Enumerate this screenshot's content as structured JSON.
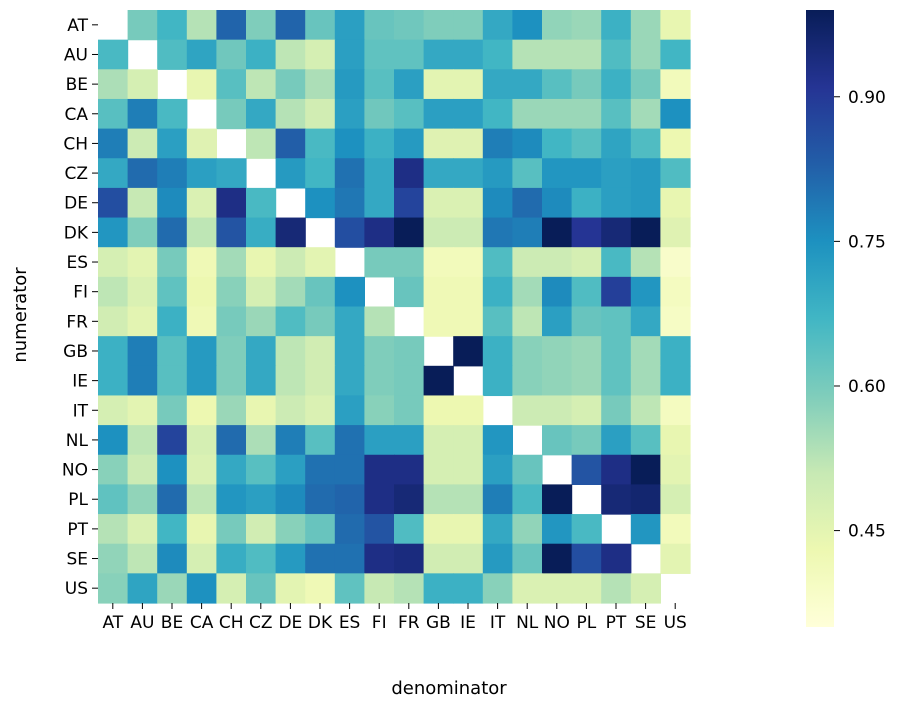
{
  "chart_data": {
    "type": "heatmap",
    "xlabel": "denominator",
    "ylabel": "numerator",
    "x_categories": [
      "AT",
      "AU",
      "BE",
      "CA",
      "CH",
      "CZ",
      "DE",
      "DK",
      "ES",
      "FI",
      "FR",
      "GB",
      "IE",
      "IT",
      "NL",
      "NO",
      "PL",
      "PT",
      "SE",
      "US"
    ],
    "y_categories": [
      "AT",
      "AU",
      "BE",
      "CA",
      "CH",
      "CZ",
      "DE",
      "DK",
      "ES",
      "FI",
      "FR",
      "GB",
      "IE",
      "IT",
      "NL",
      "NO",
      "PL",
      "PT",
      "SE",
      "US"
    ],
    "colorbar": {
      "colormap": "YlGnBu",
      "vmin": 0.35,
      "vmax": 0.99,
      "ticks": [
        0.45,
        0.6,
        0.75,
        0.9
      ],
      "tick_labels": [
        "0.45",
        "0.60",
        "0.75",
        "0.90"
      ]
    },
    "values": [
      [
        null,
        0.6,
        0.67,
        0.53,
        0.82,
        0.59,
        0.82,
        0.62,
        0.72,
        0.62,
        0.61,
        0.59,
        0.59,
        0.7,
        0.75,
        0.57,
        0.56,
        0.68,
        0.56,
        0.44
      ],
      [
        0.66,
        null,
        0.65,
        0.71,
        0.61,
        0.68,
        0.52,
        0.48,
        0.72,
        0.63,
        0.63,
        0.7,
        0.7,
        0.67,
        0.53,
        0.53,
        0.53,
        0.65,
        0.56,
        0.67
      ],
      [
        0.54,
        0.48,
        null,
        0.44,
        0.64,
        0.52,
        0.6,
        0.54,
        0.73,
        0.64,
        0.72,
        0.45,
        0.45,
        0.7,
        0.7,
        0.64,
        0.6,
        0.68,
        0.6,
        0.41
      ],
      [
        0.64,
        0.78,
        0.66,
        null,
        0.6,
        0.7,
        0.53,
        0.49,
        0.72,
        0.61,
        0.64,
        0.72,
        0.72,
        0.67,
        0.56,
        0.56,
        0.56,
        0.64,
        0.55,
        0.75
      ],
      [
        0.78,
        0.5,
        0.72,
        0.46,
        null,
        0.52,
        0.83,
        0.66,
        0.75,
        0.68,
        0.73,
        0.46,
        0.46,
        0.78,
        0.76,
        0.67,
        0.64,
        0.71,
        0.65,
        0.43
      ],
      [
        0.7,
        0.81,
        0.78,
        0.72,
        0.7,
        null,
        0.73,
        0.67,
        0.8,
        0.7,
        0.93,
        0.7,
        0.7,
        0.73,
        0.64,
        0.74,
        0.74,
        0.72,
        0.73,
        0.65
      ],
      [
        0.86,
        0.51,
        0.76,
        0.47,
        0.93,
        0.66,
        null,
        0.75,
        0.79,
        0.7,
        0.88,
        0.47,
        0.47,
        0.76,
        0.81,
        0.76,
        0.68,
        0.72,
        0.73,
        0.44
      ],
      [
        0.74,
        0.59,
        0.81,
        0.52,
        0.85,
        0.69,
        0.95,
        null,
        0.86,
        0.93,
        0.99,
        0.5,
        0.5,
        0.79,
        0.78,
        0.99,
        0.91,
        0.95,
        0.99,
        0.46
      ],
      [
        0.48,
        0.45,
        0.6,
        0.42,
        0.55,
        0.44,
        0.5,
        0.45,
        null,
        0.6,
        0.6,
        0.41,
        0.41,
        0.65,
        0.5,
        0.5,
        0.48,
        0.66,
        0.53,
        0.38
      ],
      [
        0.52,
        0.47,
        0.63,
        0.43,
        0.58,
        0.48,
        0.55,
        0.62,
        0.75,
        null,
        0.62,
        0.42,
        0.42,
        0.68,
        0.55,
        0.76,
        0.65,
        0.89,
        0.74,
        0.4
      ],
      [
        0.49,
        0.45,
        0.68,
        0.42,
        0.6,
        0.56,
        0.65,
        0.6,
        0.7,
        0.53,
        null,
        0.42,
        0.42,
        0.64,
        0.52,
        0.72,
        0.62,
        0.63,
        0.7,
        0.39
      ],
      [
        0.68,
        0.78,
        0.64,
        0.73,
        0.59,
        0.7,
        0.52,
        0.49,
        0.7,
        0.59,
        0.6,
        null,
        0.99,
        0.68,
        0.58,
        0.57,
        0.56,
        0.63,
        0.55,
        0.68
      ],
      [
        0.68,
        0.78,
        0.64,
        0.73,
        0.59,
        0.7,
        0.52,
        0.49,
        0.7,
        0.59,
        0.6,
        0.99,
        null,
        0.68,
        0.58,
        0.57,
        0.56,
        0.63,
        0.55,
        0.68
      ],
      [
        0.48,
        0.45,
        0.6,
        0.43,
        0.56,
        0.44,
        0.5,
        0.47,
        0.72,
        0.58,
        0.6,
        0.43,
        0.43,
        null,
        0.5,
        0.5,
        0.48,
        0.6,
        0.52,
        0.4
      ],
      [
        0.75,
        0.52,
        0.88,
        0.48,
        0.81,
        0.54,
        0.78,
        0.64,
        0.8,
        0.72,
        0.72,
        0.48,
        0.48,
        0.74,
        null,
        0.62,
        0.6,
        0.72,
        0.64,
        0.44
      ],
      [
        0.58,
        0.5,
        0.75,
        0.47,
        0.7,
        0.64,
        0.72,
        0.8,
        0.8,
        0.93,
        0.93,
        0.48,
        0.48,
        0.72,
        0.62,
        null,
        0.85,
        0.93,
        0.99,
        0.45
      ],
      [
        0.63,
        0.57,
        0.81,
        0.52,
        0.74,
        0.72,
        0.76,
        0.81,
        0.82,
        0.93,
        0.95,
        0.53,
        0.53,
        0.78,
        0.66,
        0.99,
        null,
        0.95,
        0.96,
        0.48
      ],
      [
        0.53,
        0.47,
        0.67,
        0.44,
        0.6,
        0.49,
        0.58,
        0.62,
        0.81,
        0.85,
        0.65,
        0.44,
        0.44,
        0.7,
        0.57,
        0.74,
        0.66,
        null,
        0.74,
        0.41
      ],
      [
        0.57,
        0.52,
        0.76,
        0.48,
        0.69,
        0.65,
        0.73,
        0.8,
        0.8,
        0.93,
        0.94,
        0.49,
        0.49,
        0.73,
        0.62,
        0.99,
        0.86,
        0.93,
        null,
        0.45
      ],
      [
        0.58,
        0.71,
        0.56,
        0.75,
        0.48,
        0.62,
        0.45,
        0.42,
        0.63,
        0.51,
        0.53,
        0.68,
        0.68,
        0.58,
        0.47,
        0.47,
        0.47,
        0.53,
        0.48,
        null
      ]
    ]
  }
}
